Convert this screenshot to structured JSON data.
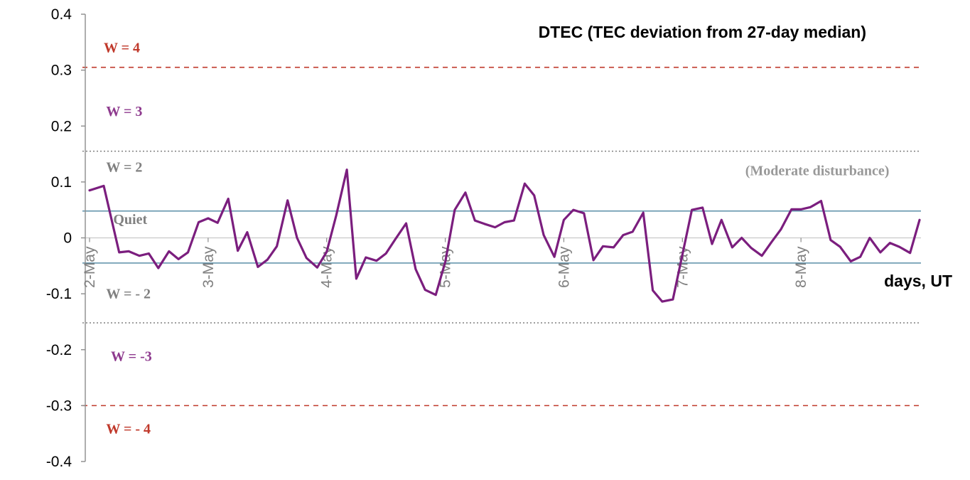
{
  "chart_data": {
    "type": "line",
    "title": "DTEC (TEC deviation from 27-day median)",
    "xlabel": "days, UT",
    "ylabel": "",
    "ylim": [
      -0.4,
      0.4
    ],
    "yticks": [
      0.4,
      0.3,
      0.2,
      0.1,
      0,
      -0.1,
      -0.2,
      -0.3,
      -0.4
    ],
    "xlim": [
      0,
      7
    ],
    "xticks": [
      {
        "x": 0,
        "label": "2-May"
      },
      {
        "x": 1,
        "label": "3-May"
      },
      {
        "x": 2,
        "label": "4-May"
      },
      {
        "x": 3,
        "label": "5-May"
      },
      {
        "x": 4,
        "label": "6-May"
      },
      {
        "x": 5,
        "label": "7-May"
      },
      {
        "x": 6,
        "label": "8-May"
      }
    ],
    "grid": false,
    "series": [
      {
        "color": "#7B1E7E",
        "x": [
          0.0,
          0.12,
          0.25,
          0.33,
          0.42,
          0.5,
          0.58,
          0.67,
          0.75,
          0.83,
          0.92,
          1.0,
          1.08,
          1.17,
          1.25,
          1.33,
          1.42,
          1.5,
          1.58,
          1.67,
          1.75,
          1.83,
          1.92,
          2.0,
          2.08,
          2.17,
          2.25,
          2.33,
          2.42,
          2.5,
          2.58,
          2.67,
          2.75,
          2.83,
          2.92,
          3.0,
          3.08,
          3.17,
          3.25,
          3.33,
          3.42,
          3.5,
          3.58,
          3.67,
          3.75,
          3.83,
          3.92,
          4.0,
          4.08,
          4.17,
          4.25,
          4.33,
          4.42,
          4.5,
          4.58,
          4.67,
          4.75,
          4.83,
          4.92,
          5.0,
          5.08,
          5.17,
          5.25,
          5.33,
          5.42,
          5.5,
          5.58,
          5.67,
          5.75,
          5.83,
          5.92,
          6.0,
          6.08,
          6.17,
          6.25,
          6.33,
          6.42,
          6.5,
          6.58,
          6.67,
          6.75,
          6.83,
          6.92,
          7.0
        ],
        "values": [
          0.085,
          0.093,
          -0.026,
          -0.024,
          -0.032,
          -0.028,
          -0.054,
          -0.024,
          -0.038,
          -0.026,
          0.028,
          0.035,
          0.027,
          0.07,
          -0.023,
          0.01,
          -0.052,
          -0.039,
          -0.015,
          0.067,
          0.0,
          -0.036,
          -0.053,
          -0.025,
          0.04,
          0.122,
          -0.073,
          -0.035,
          -0.041,
          -0.028,
          -0.002,
          0.026,
          -0.056,
          -0.093,
          -0.102,
          -0.043,
          0.05,
          0.081,
          0.031,
          0.025,
          0.019,
          0.028,
          0.031,
          0.097,
          0.076,
          0.005,
          -0.034,
          0.032,
          0.05,
          0.044,
          -0.04,
          -0.015,
          -0.017,
          0.005,
          0.011,
          0.045,
          -0.094,
          -0.114,
          -0.11,
          -0.03,
          0.05,
          0.054,
          -0.011,
          0.032,
          -0.017,
          0.0,
          -0.018,
          -0.032,
          -0.008,
          0.015,
          0.051,
          0.051,
          0.055,
          0.066,
          -0.004,
          -0.016,
          -0.042,
          -0.034,
          0.0,
          -0.026,
          -0.009,
          -0.016,
          -0.027,
          0.032
        ]
      }
    ],
    "threshold_lines": [
      {
        "y": 0.305,
        "color": "#C0392B",
        "style": "dashed"
      },
      {
        "y": 0.155,
        "color": "#808080",
        "style": "dotted"
      },
      {
        "y": 0.048,
        "color": "#5B8FA8",
        "style": "solid"
      },
      {
        "y": -0.045,
        "color": "#5B8FA8",
        "style": "solid"
      },
      {
        "y": -0.152,
        "color": "#808080",
        "style": "dotted"
      },
      {
        "y": -0.3,
        "color": "#C0392B",
        "style": "dashed"
      }
    ],
    "annotations": [
      {
        "text": "W = 4",
        "color": "#C0392B",
        "y": 0.332,
        "x": 0.12
      },
      {
        "text": "W = 3",
        "color": "#8E3A8E",
        "y": 0.218,
        "x": 0.14
      },
      {
        "text": "W = 2",
        "color": "#808080",
        "y": 0.118,
        "x": 0.14
      },
      {
        "text": "(Moderate disturbance)",
        "color": "#999999",
        "y": 0.112,
        "x": 5.53
      },
      {
        "text": "Quiet",
        "color": "#808080",
        "y": 0.025,
        "x": 0.2
      },
      {
        "text": "W = - 2",
        "color": "#808080",
        "y": -0.108,
        "x": 0.14
      },
      {
        "text": "W = -3",
        "color": "#8E3A8E",
        "y": -0.22,
        "x": 0.18
      },
      {
        "text": "W = - 4",
        "color": "#C0392B",
        "y": -0.35,
        "x": 0.14
      }
    ]
  }
}
